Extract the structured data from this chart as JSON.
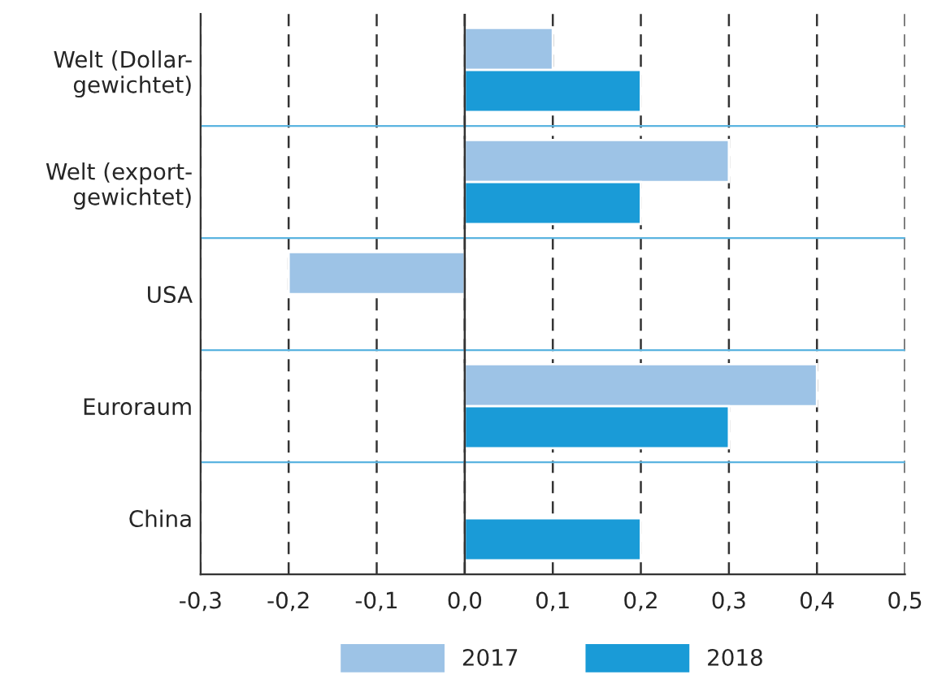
{
  "chart_data": {
    "type": "bar",
    "orientation": "horizontal",
    "categories": [
      "Welt (Dollar-\ngewichtet)",
      "Welt (export-\ngewichtet)",
      "USA",
      "Euroraum",
      "China"
    ],
    "series": [
      {
        "name": "2017",
        "color": "#9dc3e6",
        "values": [
          0.1,
          0.3,
          -0.2,
          0.4,
          null
        ]
      },
      {
        "name": "2018",
        "color": "#1a9bd7",
        "values": [
          0.2,
          0.2,
          null,
          0.3,
          0.2
        ]
      }
    ],
    "xlim": [
      -0.3,
      0.5
    ],
    "xticks": [
      {
        "value": -0.3,
        "label": "-0,3"
      },
      {
        "value": -0.2,
        "label": "-0,2"
      },
      {
        "value": -0.1,
        "label": "-0,1"
      },
      {
        "value": 0,
        "label": "0,0"
      },
      {
        "value": 0.1,
        "label": "0,1"
      },
      {
        "value": 0.2,
        "label": "0,2"
      },
      {
        "value": 0.3,
        "label": "0,3"
      },
      {
        "value": 0.4,
        "label": "0,4"
      },
      {
        "value": 0.5,
        "label": "0,5"
      }
    ],
    "grid": "x",
    "line_style": "dashed",
    "legend": "bottom"
  }
}
